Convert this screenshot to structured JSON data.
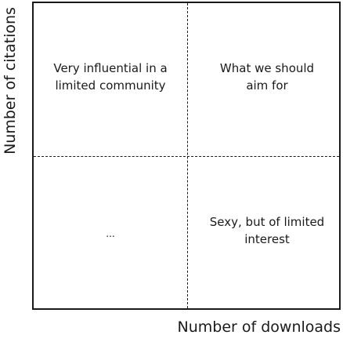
{
  "quadrants": {
    "top_left": "Very influential in a\nlimited community",
    "top_right": "What we should\naim for",
    "bottom_left": "...",
    "bottom_right": "Sexy, but of limited\ninterest"
  },
  "axes": {
    "x_label": "Number of downloads",
    "y_label": "Number of citations"
  }
}
